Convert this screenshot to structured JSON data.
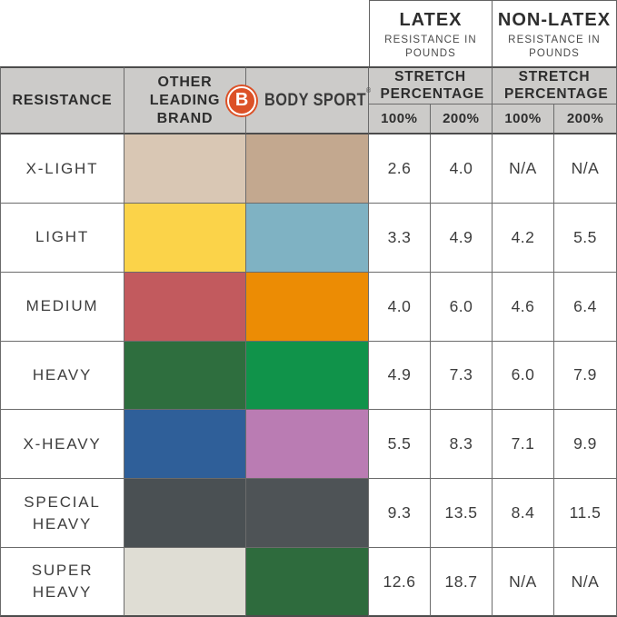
{
  "page": {
    "latex_header": {
      "title": "LATEX",
      "subtitle": "RESISTANCE IN POUNDS"
    },
    "nonlatex_header": {
      "title": "NON-LATEX",
      "subtitle": "RESISTANCE IN POUNDS"
    },
    "columns": {
      "resistance": "RESISTANCE",
      "other_brand": "OTHER LEADING BRAND",
      "stretch": "STRETCH PERCENTAGE",
      "pct100": "100%",
      "pct200": "200%"
    },
    "brand": {
      "logo_letter": "B",
      "name": "BODY SPORT",
      "registered": "®"
    },
    "rows": [
      {
        "label": "X-LIGHT",
        "other_color": "#d9c7b4",
        "body_color": "#c3a88f",
        "latex_100": "2.6",
        "latex_200": "4.0",
        "nonlatex_100": "N/A",
        "nonlatex_200": "N/A"
      },
      {
        "label": "LIGHT",
        "other_color": "#fbd349",
        "body_color": "#7fb2c3",
        "latex_100": "3.3",
        "latex_200": "4.9",
        "nonlatex_100": "4.2",
        "nonlatex_200": "5.5"
      },
      {
        "label": "MEDIUM",
        "other_color": "#c25a5e",
        "body_color": "#ec8c04",
        "latex_100": "4.0",
        "latex_200": "6.0",
        "nonlatex_100": "4.6",
        "nonlatex_200": "6.4"
      },
      {
        "label": "HEAVY",
        "other_color": "#2e6e3e",
        "body_color": "#10934a",
        "latex_100": "4.9",
        "latex_200": "7.3",
        "nonlatex_100": "6.0",
        "nonlatex_200": "7.9"
      },
      {
        "label": "X-HEAVY",
        "other_color": "#2f5f99",
        "body_color": "#ba7cb3",
        "latex_100": "5.5",
        "latex_200": "8.3",
        "nonlatex_100": "7.1",
        "nonlatex_200": "9.9"
      },
      {
        "label": "SPECIAL HEAVY",
        "other_color": "#4a5053",
        "body_color": "#4e5356",
        "latex_100": "9.3",
        "latex_200": "13.5",
        "nonlatex_100": "8.4",
        "nonlatex_200": "11.5"
      },
      {
        "label": "SUPER HEAVY",
        "other_color": "#dfddd4",
        "body_color": "#2e6b3d",
        "latex_100": "12.6",
        "latex_200": "18.7",
        "nonlatex_100": "N/A",
        "nonlatex_200": "N/A"
      }
    ],
    "colors": {
      "header_bg": "#cccbc9",
      "border": "#6b6b6b",
      "strong_border": "#4c4c4c",
      "logo_orange": "#dc5127",
      "text_dark": "#2e2e2e",
      "text_value": "#3d3d3d"
    }
  },
  "chart_data": {
    "type": "table",
    "title": "",
    "column_groups": [
      "LATEX RESISTANCE IN POUNDS",
      "NON-LATEX RESISTANCE IN POUNDS"
    ],
    "columns": [
      "RESISTANCE",
      "OTHER LEADING BRAND",
      "BODY SPORT",
      "LATEX STRETCH PERCENTAGE 100%",
      "LATEX STRETCH PERCENTAGE 200%",
      "NON-LATEX STRETCH PERCENTAGE 100%",
      "NON-LATEX STRETCH PERCENTAGE 200%"
    ],
    "rows": [
      {
        "resistance": "X-LIGHT",
        "latex_100": 2.6,
        "latex_200": 4.0,
        "nonlatex_100": null,
        "nonlatex_200": null,
        "na_cells": [
          "nonlatex_100",
          "nonlatex_200"
        ]
      },
      {
        "resistance": "LIGHT",
        "latex_100": 3.3,
        "latex_200": 4.9,
        "nonlatex_100": 4.2,
        "nonlatex_200": 5.5
      },
      {
        "resistance": "MEDIUM",
        "latex_100": 4.0,
        "latex_200": 6.0,
        "nonlatex_100": 4.6,
        "nonlatex_200": 6.4
      },
      {
        "resistance": "HEAVY",
        "latex_100": 4.9,
        "latex_200": 7.3,
        "nonlatex_100": 6.0,
        "nonlatex_200": 7.9
      },
      {
        "resistance": "X-HEAVY",
        "latex_100": 5.5,
        "latex_200": 8.3,
        "nonlatex_100": 7.1,
        "nonlatex_200": 9.9
      },
      {
        "resistance": "SPECIAL HEAVY",
        "latex_100": 9.3,
        "latex_200": 13.5,
        "nonlatex_100": 8.4,
        "nonlatex_200": 11.5
      },
      {
        "resistance": "SUPER HEAVY",
        "latex_100": 12.6,
        "latex_200": 18.7,
        "nonlatex_100": null,
        "nonlatex_200": null,
        "na_cells": [
          "nonlatex_100",
          "nonlatex_200"
        ]
      }
    ]
  }
}
